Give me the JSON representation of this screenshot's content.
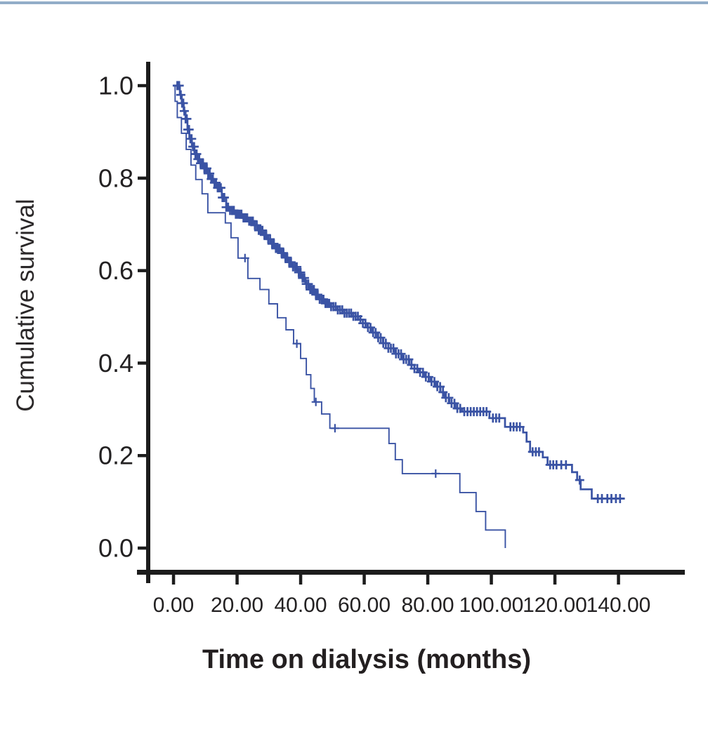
{
  "page": {
    "top_band_color": "#92adc8",
    "background_color": "#ffffff"
  },
  "chart_data": {
    "type": "line",
    "chart_style": "kaplan-meier-step",
    "title": "",
    "xlabel": "Time on dialysis (months)",
    "ylabel": "Cumulative survival",
    "legend": "none",
    "grid": false,
    "line_color": "#3a53a4",
    "axis_color": "#1c1c1c",
    "x_axis": {
      "tick_labels": [
        "0.00",
        "20.00",
        "40.00",
        "60.00",
        "80.00",
        "100.00",
        "120.00",
        "140.00"
      ],
      "tick_values": [
        0,
        20,
        40,
        60,
        80,
        100,
        120,
        140
      ],
      "range": [
        0,
        160
      ]
    },
    "y_axis": {
      "tick_labels": [
        "1.0",
        "0.8",
        "0.6",
        "0.4",
        "0.2",
        "0.0"
      ],
      "tick_values": [
        1.0,
        0.8,
        0.6,
        0.4,
        0.2,
        0.0
      ],
      "range": [
        0,
        1
      ]
    },
    "series": [
      {
        "name": "upper-heavily-censored-curve",
        "points": [
          [
            0,
            1.0
          ],
          [
            2.0,
            0.98
          ],
          [
            2.6,
            0.962
          ],
          [
            3.2,
            0.945
          ],
          [
            3.8,
            0.928
          ],
          [
            4.4,
            0.905
          ],
          [
            5.0,
            0.885
          ],
          [
            5.8,
            0.868
          ],
          [
            6.6,
            0.852
          ],
          [
            7.4,
            0.841
          ],
          [
            8.4,
            0.832
          ],
          [
            9.5,
            0.821
          ],
          [
            10.6,
            0.81
          ],
          [
            11.7,
            0.798
          ],
          [
            12.8,
            0.79
          ],
          [
            13.9,
            0.779
          ],
          [
            15.2,
            0.758
          ],
          [
            16.6,
            0.737
          ],
          [
            17.8,
            0.73
          ],
          [
            19.6,
            0.722
          ],
          [
            21.6,
            0.714
          ],
          [
            23.4,
            0.707
          ],
          [
            25.6,
            0.698
          ],
          [
            26.8,
            0.687
          ],
          [
            28.2,
            0.677
          ],
          [
            29.4,
            0.668
          ],
          [
            30.8,
            0.658
          ],
          [
            32.2,
            0.648
          ],
          [
            33.8,
            0.638
          ],
          [
            35.0,
            0.628
          ],
          [
            36.2,
            0.618
          ],
          [
            37.6,
            0.608
          ],
          [
            38.9,
            0.596
          ],
          [
            40.2,
            0.584
          ],
          [
            41.5,
            0.571
          ],
          [
            43.0,
            0.559
          ],
          [
            44.5,
            0.548
          ],
          [
            46.0,
            0.538
          ],
          [
            47.7,
            0.529
          ],
          [
            49.6,
            0.522
          ],
          [
            51.6,
            0.515
          ],
          [
            53.7,
            0.508
          ],
          [
            56.0,
            0.501
          ],
          [
            58.1,
            0.494
          ],
          [
            59.6,
            0.486
          ],
          [
            61.0,
            0.477
          ],
          [
            62.5,
            0.466
          ],
          [
            64.2,
            0.455
          ],
          [
            65.9,
            0.443
          ],
          [
            67.6,
            0.432
          ],
          [
            69.7,
            0.42
          ],
          [
            71.9,
            0.408
          ],
          [
            74.2,
            0.396
          ],
          [
            75.8,
            0.388
          ],
          [
            77.3,
            0.38
          ],
          [
            79.1,
            0.37
          ],
          [
            80.9,
            0.36
          ],
          [
            82.5,
            0.349
          ],
          [
            84.0,
            0.337
          ],
          [
            85.3,
            0.325
          ],
          [
            86.8,
            0.313
          ],
          [
            88.7,
            0.302
          ],
          [
            90.8,
            0.295
          ],
          [
            99.4,
            0.281
          ],
          [
            104.3,
            0.262
          ],
          [
            110.0,
            0.25
          ],
          [
            111.1,
            0.23
          ],
          [
            112.2,
            0.208
          ],
          [
            116.2,
            0.196
          ],
          [
            117.7,
            0.18
          ],
          [
            125.4,
            0.164
          ],
          [
            127.0,
            0.147
          ],
          [
            128.1,
            0.127
          ],
          [
            131.6,
            0.107
          ],
          [
            142.0,
            0.107
          ]
        ],
        "censor_times": [
          1.2,
          1.8,
          2.3,
          2.7,
          3.1,
          3.4,
          3.8,
          4.2,
          4.5,
          4.9,
          5.3,
          5.7,
          6.1,
          6.5,
          6.9,
          7.3,
          7.7,
          8.1,
          8.5,
          8.9,
          9.3,
          9.7,
          10.1,
          10.5,
          10.9,
          11.4,
          11.9,
          12.4,
          12.9,
          13.4,
          13.9,
          14.4,
          14.9,
          15.4,
          16.0,
          16.6,
          17.2,
          17.8,
          18.4,
          19.0,
          19.6,
          20.2,
          20.8,
          21.4,
          22.0,
          22.6,
          23.2,
          23.8,
          24.4,
          25.0,
          25.6,
          26.2,
          26.8,
          27.4,
          28.0,
          28.6,
          29.2,
          29.8,
          30.4,
          31.0,
          31.6,
          32.2,
          32.8,
          33.4,
          34.0,
          34.6,
          35.2,
          35.8,
          36.4,
          37.0,
          37.6,
          38.2,
          38.8,
          39.4,
          40.0,
          40.6,
          41.2,
          41.8,
          42.4,
          43.0,
          43.6,
          44.2,
          44.8,
          45.4,
          46.0,
          46.6,
          47.2,
          47.8,
          48.4,
          49.0,
          49.6,
          50.3,
          51.0,
          51.7,
          52.4,
          53.1,
          53.8,
          54.5,
          55.2,
          55.9,
          56.6,
          57.3,
          58.0,
          58.8,
          59.6,
          60.4,
          61.2,
          62.0,
          62.8,
          63.6,
          64.4,
          65.2,
          66.0,
          66.8,
          67.6,
          68.4,
          69.2,
          70.0,
          70.8,
          71.6,
          72.4,
          73.2,
          74.0,
          74.9,
          75.8,
          76.7,
          77.6,
          78.5,
          79.4,
          80.3,
          81.2,
          82.1,
          83.0,
          83.9,
          84.8,
          85.7,
          86.6,
          87.5,
          88.4,
          89.3,
          90.2,
          91.5,
          92.5,
          93.5,
          94.5,
          95.5,
          96.5,
          97.5,
          98.5,
          100.5,
          101.5,
          102.5,
          106.0,
          107.0,
          108.0,
          109.0,
          113.0,
          114.0,
          115.0,
          118.5,
          119.5,
          120.5,
          122.0,
          123.5,
          127.8,
          133.5,
          134.8,
          136.5,
          137.8,
          139.2,
          140.5
        ]
      },
      {
        "name": "lower-step-curve",
        "points": [
          [
            0,
            1.0
          ],
          [
            0.5,
            0.966
          ],
          [
            1.2,
            0.931
          ],
          [
            2.5,
            0.897
          ],
          [
            4.0,
            0.862
          ],
          [
            5.5,
            0.828
          ],
          [
            7.0,
            0.797
          ],
          [
            9.0,
            0.766
          ],
          [
            10.8,
            0.725
          ],
          [
            16.3,
            0.703
          ],
          [
            18.1,
            0.671
          ],
          [
            20.3,
            0.627
          ],
          [
            23.4,
            0.583
          ],
          [
            27.2,
            0.559
          ],
          [
            30.0,
            0.528
          ],
          [
            32.7,
            0.498
          ],
          [
            35.4,
            0.472
          ],
          [
            37.8,
            0.442
          ],
          [
            40.0,
            0.41
          ],
          [
            41.8,
            0.375
          ],
          [
            43.2,
            0.345
          ],
          [
            44.3,
            0.316
          ],
          [
            46.6,
            0.29
          ],
          [
            49.2,
            0.259
          ],
          [
            67.8,
            0.226
          ],
          [
            69.8,
            0.191
          ],
          [
            72.0,
            0.161
          ],
          [
            90.1,
            0.12
          ],
          [
            95.2,
            0.079
          ],
          [
            98.2,
            0.039
          ],
          [
            104.4,
            0.0
          ]
        ],
        "censor_times": [
          22.5,
          38.8,
          44.8,
          50.8,
          82.5
        ]
      }
    ]
  }
}
